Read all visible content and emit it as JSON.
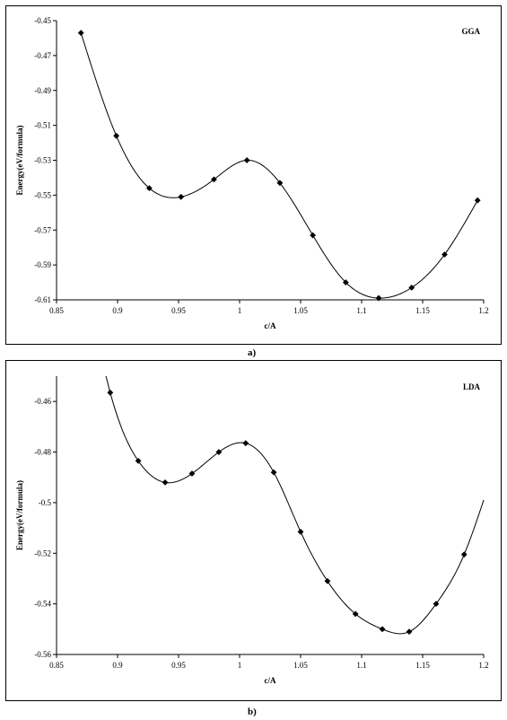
{
  "chart_data": [
    {
      "type": "scatter",
      "label": "GGA",
      "caption": "a)",
      "xlabel": "c/A",
      "ylabel": "Energy(eV/formula)",
      "xlim": [
        0.85,
        1.2
      ],
      "ylim": [
        -0.61,
        -0.45
      ],
      "xticks": [
        0.85,
        0.9,
        0.95,
        1,
        1.05,
        1.1,
        1.15,
        1.2
      ],
      "xtick_labels": [
        "0.85",
        "0.9",
        "0.95",
        "1",
        "1.05",
        "1.1",
        "1.15",
        "1.2"
      ],
      "yticks": [
        -0.45,
        -0.47,
        -0.49,
        -0.51,
        -0.53,
        -0.55,
        -0.57,
        -0.59,
        -0.61
      ],
      "ytick_labels": [
        "-0.45",
        "-0.47",
        "-0.49",
        "-0.51",
        "-0.53",
        "-0.55",
        "-0.57",
        "-0.59",
        "-0.61"
      ],
      "x": [
        0.87,
        0.899,
        0.926,
        0.952,
        0.979,
        1.006,
        1.033,
        1.06,
        1.087,
        1.114,
        1.141,
        1.168,
        1.195
      ],
      "y": [
        -0.457,
        -0.516,
        -0.546,
        -0.551,
        -0.541,
        -0.53,
        -0.543,
        -0.573,
        -0.6,
        -0.609,
        -0.603,
        -0.584,
        -0.553
      ],
      "grid": false,
      "marker": "diamond",
      "line": "smooth"
    },
    {
      "type": "scatter",
      "label": "LDA",
      "caption": "b)",
      "xlabel": "c/A",
      "ylabel": "Energy(eV/formula)",
      "xlim": [
        0.85,
        1.2
      ],
      "ylim": [
        -0.56,
        -0.45
      ],
      "xticks": [
        0.85,
        0.9,
        0.95,
        1,
        1.05,
        1.1,
        1.15,
        1.2
      ],
      "xtick_labels": [
        "0.85",
        "0.9",
        "0.95",
        "1",
        "1.05",
        "1.1",
        "1.15",
        "1.2"
      ],
      "yticks": [
        -0.46,
        -0.48,
        -0.5,
        -0.52,
        -0.54,
        -0.56
      ],
      "ytick_labels": [
        "-0.46",
        "-0.48",
        "-0.5",
        "-0.52",
        "-0.54",
        "-0.56"
      ],
      "x": [
        0.894,
        0.917,
        0.939,
        0.961,
        0.983,
        1.005,
        1.028,
        1.05,
        1.072,
        1.095,
        1.117,
        1.139,
        1.161,
        1.184
      ],
      "y": [
        -0.4565,
        -0.4835,
        -0.492,
        -0.4885,
        -0.48,
        -0.4765,
        -0.488,
        -0.5115,
        -0.531,
        -0.544,
        -0.55,
        -0.551,
        -0.54,
        -0.5205
      ],
      "curve_ends": [
        [
          0.89,
          -0.449
        ],
        [
          1.2,
          -0.499
        ]
      ],
      "grid": false,
      "marker": "diamond",
      "line": "smooth"
    }
  ]
}
